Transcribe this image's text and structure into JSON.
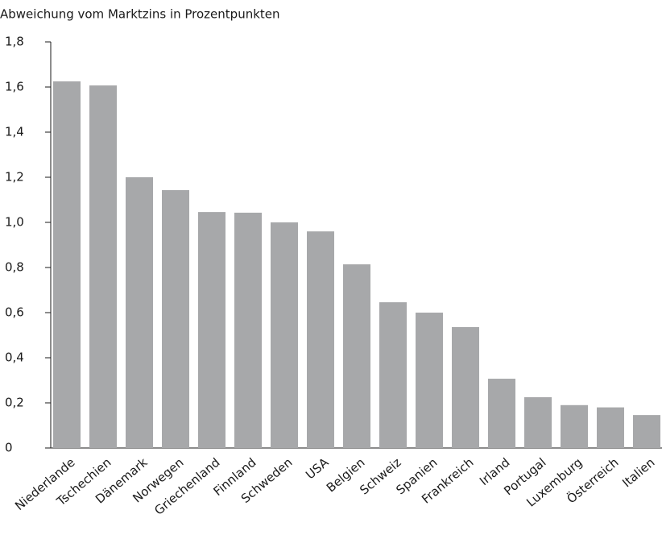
{
  "chart_data": {
    "type": "bar",
    "title": "Abweichung vom Marktzins in Prozentpunkten",
    "categories": [
      "Niederlande",
      "Tschechien",
      "Dänemark",
      "Norwegen",
      "Griechenland",
      "Finnland",
      "Schweden",
      "USA",
      "Belgien",
      "Schweiz",
      "Spanien",
      "Frankreich",
      "Irland",
      "Portugal",
      "Luxemburg",
      "Österreich",
      "Italien"
    ],
    "values": [
      1.625,
      1.607,
      1.2,
      1.143,
      1.046,
      1.043,
      1.0,
      0.96,
      0.814,
      0.646,
      0.6,
      0.536,
      0.307,
      0.225,
      0.19,
      0.18,
      0.146
    ],
    "color": "#a7a8aa",
    "ylim": [
      0,
      1.8
    ],
    "yticks": [
      0,
      {
        "value": 0.2,
        "label": "0,2"
      },
      {
        "value": 0.4,
        "label": "0,4"
      },
      {
        "value": 0.6,
        "label": "0,6"
      },
      {
        "value": 0.8,
        "label": "0,8"
      },
      {
        "value": 1.0,
        "label": "1,0"
      },
      {
        "value": 1.2,
        "label": "1,2"
      },
      {
        "value": 1.4,
        "label": "1,4"
      },
      {
        "value": 1.6,
        "label": "1,6"
      },
      {
        "value": 1.8,
        "label": "1,8"
      }
    ],
    "grid": false
  }
}
